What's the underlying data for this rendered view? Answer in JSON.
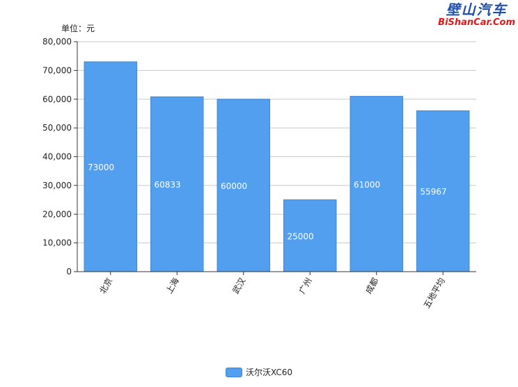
{
  "watermark": {
    "cn": "壁山汽车",
    "en": "BiShanCar.Com"
  },
  "chart_data": {
    "type": "bar",
    "unit_label": "单位：元",
    "categories": [
      "北京",
      "上海",
      "武汉",
      "广州",
      "成都",
      "五地平均"
    ],
    "series": [
      {
        "name": "沃尔沃XC60",
        "values": [
          73000,
          60833,
          60000,
          25000,
          61000,
          55967
        ]
      }
    ],
    "data_labels": [
      "73000",
      "60833",
      "60000",
      "25000",
      "61000",
      "55967"
    ],
    "ylim": [
      0,
      80000
    ],
    "yticks": [
      0,
      10000,
      20000,
      30000,
      40000,
      50000,
      60000,
      70000,
      80000
    ],
    "ytick_labels": [
      "0",
      "10,000",
      "20,000",
      "30,000",
      "40,000",
      "50,000",
      "60,000",
      "70,000",
      "80,000"
    ],
    "grid": true,
    "legend_position": "bottom",
    "colors": {
      "bar": "#529ff0",
      "bar_edge": "#3f86d4",
      "grid": "#c8c8c8",
      "axis": "#333333"
    }
  }
}
